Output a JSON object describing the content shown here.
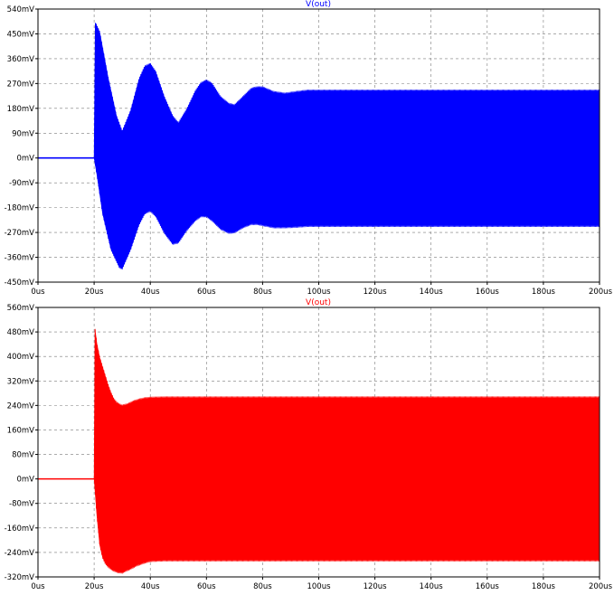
{
  "chart_data": [
    {
      "type": "line",
      "title": "V(out)",
      "title_color": "#0000ff",
      "series": [
        {
          "name": "V(out)",
          "color": "#0000ff",
          "rendering": "dense oscillation envelope",
          "pre_step": {
            "x": [
              0,
              20
            ],
            "y": 0
          },
          "upper_envelope": {
            "x": [
              20,
              20.4,
              22,
              25,
              28,
              30,
              33,
              36,
              38,
              40,
              42,
              45,
              48,
              50,
              53,
              56,
              58,
              60,
              62,
              65,
              68,
              70,
              73,
              76,
              78,
              80,
              84,
              88,
              92,
              96,
              100,
              110,
              120,
              200
            ],
            "y": [
              0,
              490,
              455,
              290,
              150,
              95,
              170,
              285,
              330,
              340,
              310,
              220,
              150,
              125,
              175,
              240,
              270,
              280,
              268,
              220,
              195,
              190,
              220,
              250,
              255,
              255,
              238,
              232,
              238,
              243,
              243,
              243,
              243,
              243
            ]
          },
          "lower_envelope": {
            "x": [
              20,
              21,
              23,
              26,
              29,
              30,
              33,
              36,
              38,
              40,
              42,
              45,
              48,
              50,
              53,
              56,
              58,
              60,
              62,
              65,
              68,
              70,
              73,
              76,
              78,
              80,
              84,
              88,
              92,
              96,
              100,
              110,
              120,
              200
            ],
            "y": [
              0,
              -60,
              -200,
              -330,
              -395,
              -400,
              -330,
              -240,
              -200,
              -190,
              -210,
              -270,
              -310,
              -305,
              -260,
              -225,
              -210,
              -210,
              -225,
              -255,
              -270,
              -268,
              -250,
              -238,
              -238,
              -242,
              -250,
              -250,
              -248,
              -245,
              -245,
              -245,
              -245,
              -245
            ]
          }
        }
      ],
      "xlabel": "",
      "ylabel": "",
      "xlim": [
        0,
        200
      ],
      "ylim": [
        -450,
        540
      ],
      "x_ticks": [
        0,
        20,
        40,
        60,
        80,
        100,
        120,
        140,
        160,
        180,
        200
      ],
      "x_tick_labels": [
        "0us",
        "20us",
        "40us",
        "60us",
        "80us",
        "100us",
        "120us",
        "140us",
        "160us",
        "180us",
        "200us"
      ],
      "y_ticks": [
        540,
        450,
        360,
        270,
        180,
        90,
        0,
        -90,
        -180,
        -270,
        -360,
        -450
      ],
      "y_tick_labels": [
        "540mV",
        "450mV",
        "360mV",
        "270mV",
        "180mV",
        "90mV",
        "0mV",
        "-90mV",
        "-180mV",
        "-270mV",
        "-360mV",
        "-450mV"
      ],
      "grid": true
    },
    {
      "type": "line",
      "title": "V(out)",
      "title_color": "#ff0000",
      "series": [
        {
          "name": "V(out)",
          "color": "#ff0000",
          "rendering": "dense oscillation envelope",
          "pre_step": {
            "x": [
              0,
              20
            ],
            "y": 0
          },
          "upper_envelope": {
            "x": [
              20,
              20.3,
              21,
              22,
              23,
              24,
              25,
              26,
              27,
              28,
              29,
              30,
              32,
              34,
              36,
              38,
              40,
              45,
              50,
              60,
              80,
              100,
              200
            ],
            "y": [
              0,
              490,
              440,
              395,
              365,
              335,
              305,
              280,
              260,
              248,
              242,
              238,
              243,
              252,
              258,
              262,
              264,
              265,
              265,
              265,
              265,
              265,
              265
            ]
          },
          "lower_envelope": {
            "x": [
              20,
              21,
              22,
              23,
              24,
              25,
              26,
              27,
              28,
              29,
              30,
              31,
              33,
              35,
              38,
              40,
              45,
              50,
              60,
              80,
              100,
              200
            ],
            "y": [
              0,
              -120,
              -215,
              -255,
              -275,
              -285,
              -293,
              -298,
              -302,
              -304,
              -305,
              -300,
              -292,
              -282,
              -272,
              -267,
              -265,
              -265,
              -265,
              -265,
              -265,
              -265
            ]
          }
        }
      ],
      "xlabel": "",
      "ylabel": "",
      "xlim": [
        0,
        200
      ],
      "ylim": [
        -320,
        560
      ],
      "x_ticks": [
        0,
        20,
        40,
        60,
        80,
        100,
        120,
        140,
        160,
        180,
        200
      ],
      "x_tick_labels": [
        "0us",
        "20us",
        "40us",
        "60us",
        "80us",
        "100us",
        "120us",
        "140us",
        "160us",
        "180us",
        "200us"
      ],
      "y_ticks": [
        560,
        480,
        400,
        320,
        240,
        160,
        80,
        0,
        -80,
        -160,
        -240,
        -320
      ],
      "y_tick_labels": [
        "560mV",
        "480mV",
        "400mV",
        "320mV",
        "240mV",
        "160mV",
        "80mV",
        "0mV",
        "-80mV",
        "-160mV",
        "-240mV",
        "-320mV"
      ],
      "grid": true
    }
  ]
}
